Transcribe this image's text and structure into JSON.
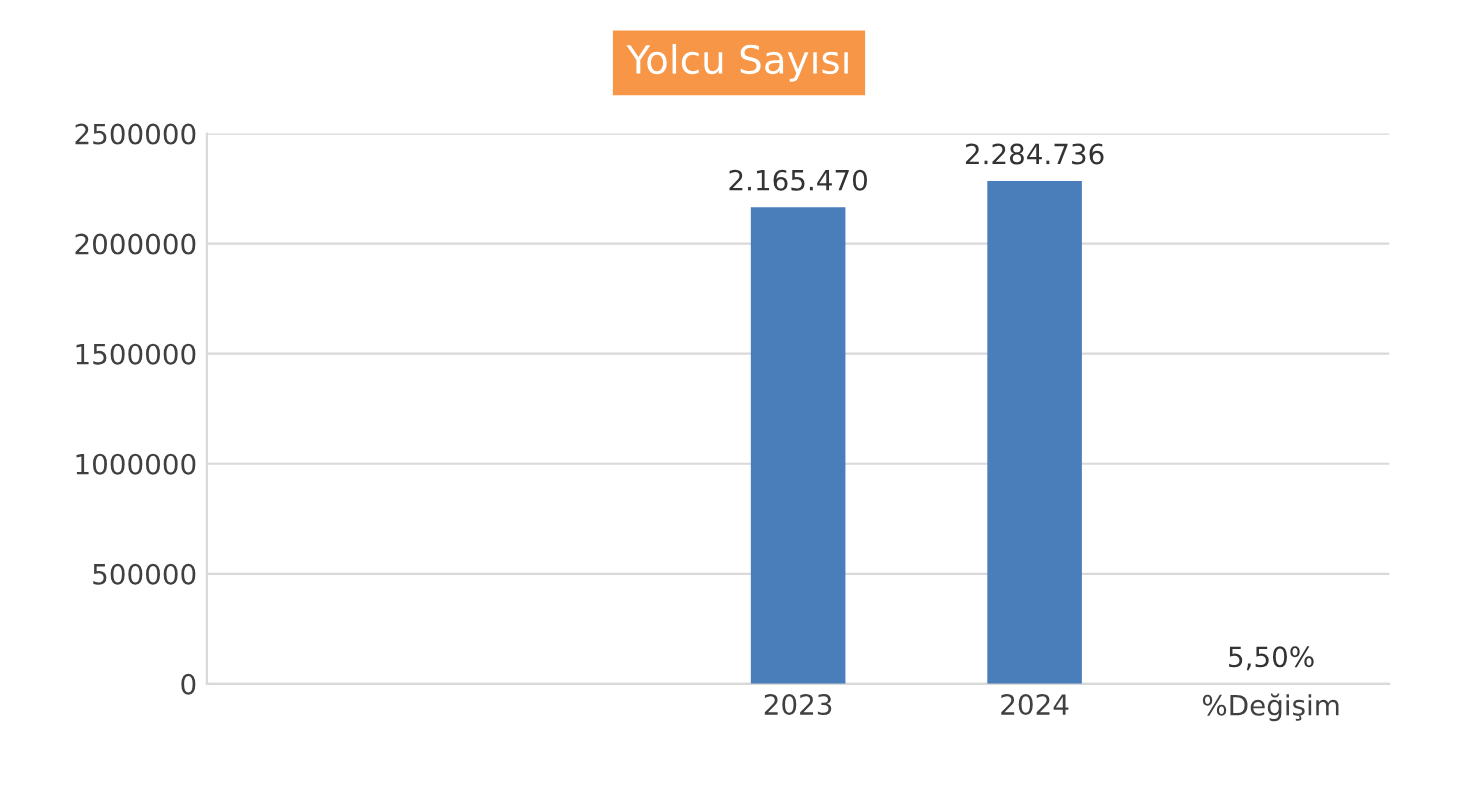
{
  "chart_data": {
    "type": "bar",
    "title": "Yolcu Sayısı",
    "categories": [
      null,
      null,
      "2023",
      "2024",
      "%Değişim"
    ],
    "values": [
      null,
      null,
      2165470,
      2284736,
      5.5
    ],
    "value_labels": [
      null,
      null,
      "2.165.470",
      "2.284.736",
      "5,50%"
    ],
    "color": "#4a7ebb",
    "ylim": [
      0,
      2500000
    ],
    "yticks": [
      0,
      500000,
      1000000,
      1500000,
      2000000,
      2500000
    ],
    "grid": "y",
    "legend": false
  }
}
